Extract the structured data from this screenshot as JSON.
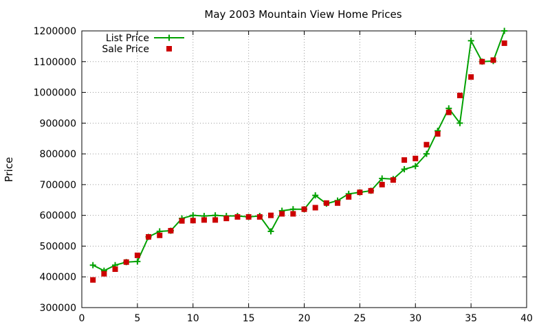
{
  "chart_data": {
    "type": "line",
    "title": "May 2003 Mountain View Home Prices",
    "xlabel": "",
    "ylabel": "Price",
    "xlim": [
      0,
      40
    ],
    "ylim": [
      300000,
      1200000
    ],
    "x_ticks": [
      0,
      5,
      10,
      15,
      20,
      25,
      30,
      35,
      40
    ],
    "y_ticks": [
      300000,
      400000,
      500000,
      600000,
      700000,
      800000,
      900000,
      1000000,
      1100000,
      1200000
    ],
    "grid": true,
    "legend_position": "top-left",
    "series": [
      {
        "name": "List Price",
        "style": "line+cross",
        "color": "#00a000",
        "x": [
          1,
          2,
          3,
          4,
          5,
          6,
          7,
          8,
          9,
          10,
          11,
          12,
          13,
          14,
          15,
          16,
          17,
          18,
          19,
          20,
          21,
          22,
          23,
          24,
          25,
          26,
          27,
          28,
          29,
          30,
          31,
          32,
          33,
          34,
          35,
          36,
          37,
          38
        ],
        "y": [
          438000,
          420000,
          438000,
          448000,
          450000,
          530000,
          548000,
          550000,
          590000,
          600000,
          598000,
          600000,
          598000,
          598000,
          595000,
          598000,
          548000,
          615000,
          620000,
          620000,
          665000,
          638000,
          648000,
          670000,
          675000,
          680000,
          720000,
          718000,
          750000,
          760000,
          800000,
          875000,
          948000,
          900000,
          1168000,
          1100000,
          1102000,
          1200000
        ]
      },
      {
        "name": "Sale Price",
        "style": "points",
        "color": "#cc0000",
        "x": [
          1,
          2,
          3,
          4,
          5,
          6,
          7,
          8,
          9,
          10,
          11,
          12,
          13,
          14,
          15,
          16,
          17,
          18,
          19,
          20,
          21,
          22,
          23,
          24,
          25,
          26,
          27,
          28,
          29,
          30,
          31,
          32,
          33,
          34,
          35,
          36,
          37,
          38
        ],
        "y": [
          390000,
          410000,
          425000,
          448000,
          470000,
          530000,
          535000,
          550000,
          582000,
          583000,
          585000,
          585000,
          590000,
          595000,
          595000,
          595000,
          600000,
          605000,
          605000,
          620000,
          625000,
          640000,
          640000,
          660000,
          675000,
          680000,
          700000,
          715000,
          780000,
          785000,
          830000,
          865000,
          935000,
          990000,
          1050000,
          1100000,
          1105000,
          1160000
        ]
      }
    ]
  }
}
